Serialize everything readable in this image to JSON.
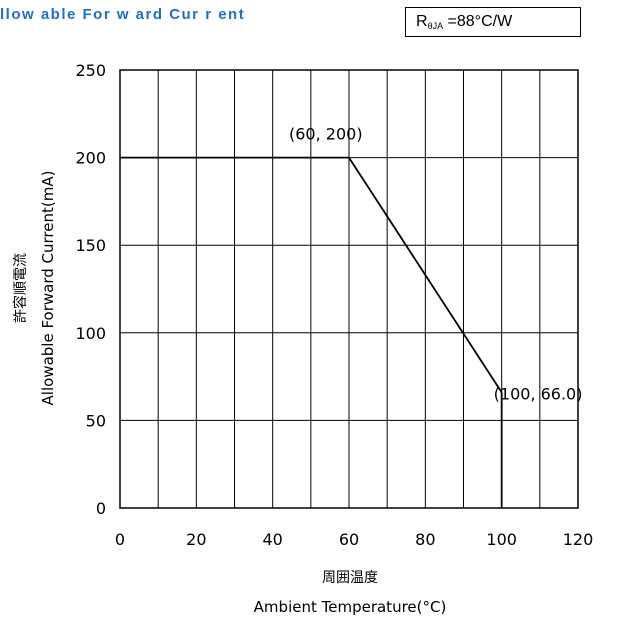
{
  "title": "llow able For w ard Cur r ent",
  "thermal_resistance": {
    "symbol": "R",
    "subscript": "θJA",
    "value": " =88°C/W"
  },
  "chart_data": {
    "type": "line",
    "xlabel_jp": "周囲温度",
    "xlabel": "Ambient Temperature(°C)",
    "ylabel_jp": "許容順電流",
    "ylabel": "Allowable Forward Current(mA)",
    "xlim": [
      0,
      120
    ],
    "ylim": [
      0,
      250
    ],
    "xticks": [
      0,
      20,
      40,
      60,
      80,
      100,
      120
    ],
    "yticks": [
      0,
      50,
      100,
      150,
      200,
      250
    ],
    "x_minor_step": 10,
    "y_minor_step": 50,
    "grid": true,
    "line_color": "#000000",
    "series": [
      {
        "x": [
          0,
          60,
          100,
          100
        ],
        "y": [
          200,
          200,
          66.0,
          0
        ]
      }
    ],
    "annotations": [
      {
        "text": "(60, 200)",
        "x": 60,
        "y": 200
      },
      {
        "text": "(100, 66.0)",
        "x": 100,
        "y": 66.0
      }
    ]
  }
}
